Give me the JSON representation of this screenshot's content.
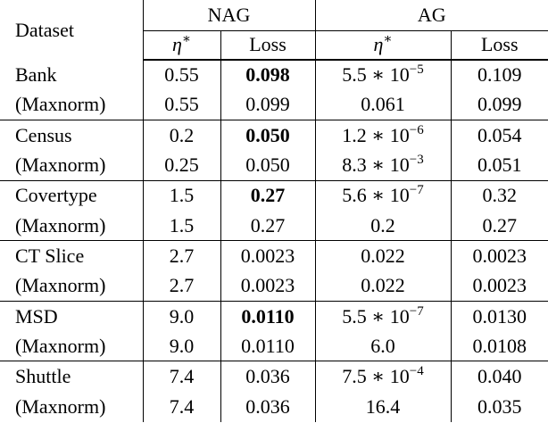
{
  "table": {
    "header": {
      "dataset": "Dataset",
      "groups": [
        "NAG",
        "AG"
      ],
      "columns": [
        {
          "symbol": "η",
          "sup": "∗"
        },
        "Loss",
        {
          "symbol": "η",
          "sup": "∗"
        },
        "Loss"
      ]
    },
    "rows": [
      [
        "Bank",
        "0.55",
        {
          "text": "0.098",
          "bold": true
        },
        {
          "base": "5.5 ∗ 10",
          "exp": "−5"
        },
        "0.109"
      ],
      [
        "(Maxnorm)",
        "0.55",
        "0.099",
        "0.061",
        "0.099"
      ],
      [
        "Census",
        "0.2",
        {
          "text": "0.050",
          "bold": true
        },
        {
          "base": "1.2 ∗ 10",
          "exp": "−6"
        },
        "0.054"
      ],
      [
        "(Maxnorm)",
        "0.25",
        "0.050",
        {
          "base": "8.3 ∗ 10",
          "exp": "−3"
        },
        "0.051"
      ],
      [
        "Covertype",
        "1.5",
        {
          "text": "0.27",
          "bold": true
        },
        {
          "base": "5.6 ∗ 10",
          "exp": "−7"
        },
        "0.32"
      ],
      [
        "(Maxnorm)",
        "1.5",
        "0.27",
        "0.2",
        "0.27"
      ],
      [
        "CT Slice",
        "2.7",
        "0.0023",
        "0.022",
        "0.0023"
      ],
      [
        "(Maxnorm)",
        "2.7",
        "0.0023",
        "0.022",
        "0.0023"
      ],
      [
        "MSD",
        "9.0",
        {
          "text": "0.0110",
          "bold": true
        },
        {
          "base": "5.5 ∗ 10",
          "exp": "−7"
        },
        "0.0130"
      ],
      [
        "(Maxnorm)",
        "9.0",
        "0.0110",
        "6.0",
        "0.0108"
      ],
      [
        "Shuttle",
        "7.4",
        "0.036",
        {
          "base": "7.5 ∗ 10",
          "exp": "−4"
        },
        "0.040"
      ],
      [
        "(Maxnorm)",
        "7.4",
        "0.036",
        "16.4",
        "0.035"
      ]
    ]
  }
}
